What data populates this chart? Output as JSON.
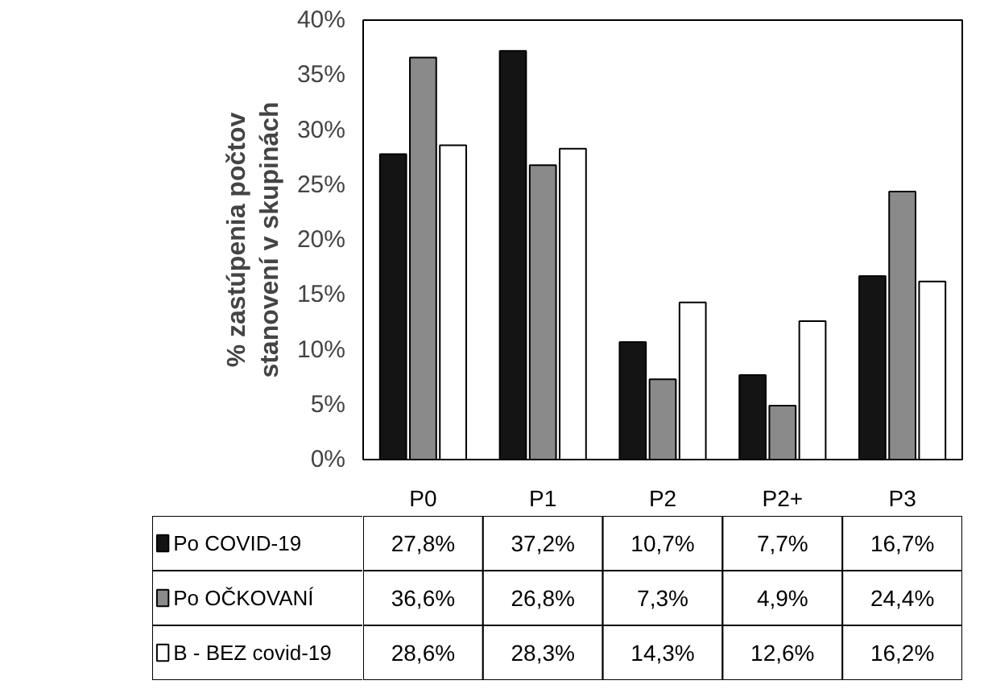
{
  "chart_data": {
    "type": "bar",
    "ylabel": "% zastúpenia počtov\nstanovení v skupinách",
    "categories": [
      "P0",
      "P1",
      "P2",
      "P2+",
      "P3"
    ],
    "ylim": [
      0,
      40
    ],
    "yticks": [
      {
        "value": 0,
        "label": "0%"
      },
      {
        "value": 5,
        "label": "5%"
      },
      {
        "value": 10,
        "label": "10%"
      },
      {
        "value": 15,
        "label": "15%"
      },
      {
        "value": 20,
        "label": "20%"
      },
      {
        "value": 25,
        "label": "25%"
      },
      {
        "value": 30,
        "label": "30%"
      },
      {
        "value": 35,
        "label": "35%"
      },
      {
        "value": 40,
        "label": "40%"
      }
    ],
    "grid": false,
    "legend": "bottom left",
    "series": [
      {
        "name": "Po COVID-19",
        "color": "#141414",
        "values": [
          27.8,
          37.2,
          10.7,
          7.7,
          16.7
        ],
        "value_labels": [
          "27,8%",
          "37,2%",
          "10,7%",
          "7,7%",
          "16,7%"
        ]
      },
      {
        "name": "Po OČKOVANÍ",
        "color": "#8a8a8a",
        "values": [
          36.6,
          26.8,
          7.3,
          4.9,
          24.4
        ],
        "value_labels": [
          "36,6%",
          "26,8%",
          "7,3%",
          "4,9%",
          "24,4%"
        ]
      },
      {
        "name": "B - BEZ covid-19",
        "color": "#ffffff",
        "values": [
          28.6,
          28.3,
          14.3,
          12.6,
          16.2
        ],
        "value_labels": [
          "28,6%",
          "28,3%",
          "14,3%",
          "12,6%",
          "16,2%"
        ]
      }
    ]
  }
}
